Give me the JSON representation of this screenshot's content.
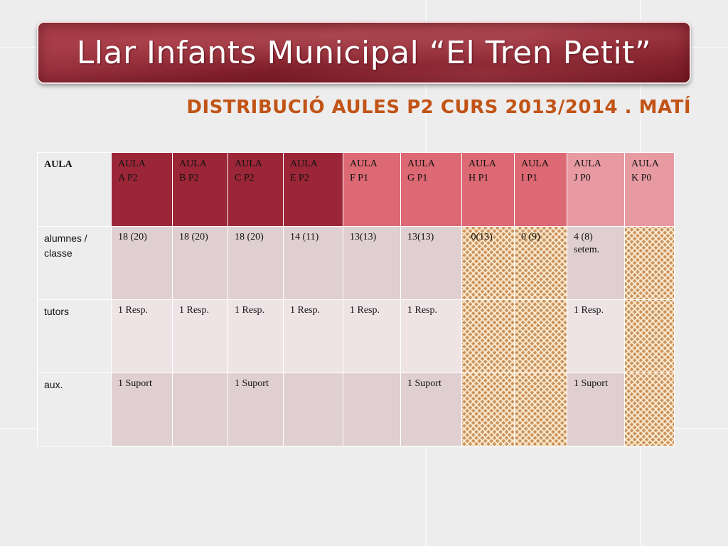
{
  "header": {
    "title": "Llar Infants Municipal “El Tren Petit”",
    "subtitle": "DISTRIBUCIÓ AULES P2 CURS 2013/2014 . MATÍ"
  },
  "table": {
    "corner_label": "AULA",
    "columns": [
      {
        "label": "AULA\nA P2"
      },
      {
        "label": "AULA\nB P2"
      },
      {
        "label": "AULA\nC P2"
      },
      {
        "label": "AULA\nE P2"
      },
      {
        "label": "AULA\nF P1"
      },
      {
        "label": "AULA\nG P1"
      },
      {
        "label": "AULA\nH P1"
      },
      {
        "label": "AULA\nI   P1"
      },
      {
        "label": "AULA\nJ P0"
      },
      {
        "label": "AULA\nK P0"
      }
    ],
    "rows": [
      {
        "label": "alumnes / classe",
        "cells": [
          "18 (20)",
          "18 (20)",
          "18 (20)",
          "14 (11)",
          "13(13)",
          "13(13)",
          " 0(13)",
          "0 (9)",
          "4 (8) setem.",
          ""
        ]
      },
      {
        "label": "tutors",
        "cells": [
          "1 Resp.",
          "1 Resp.",
          "1 Resp.",
          "1 Resp.",
          "1 Resp.",
          "1 Resp.",
          "",
          "",
          "1 Resp.",
          ""
        ]
      },
      {
        "label": "aux.",
        "cells": [
          "1 Suport",
          "",
          "1 Suport",
          "",
          "",
          "1 Suport",
          "",
          "",
          "1 Suport",
          ""
        ]
      }
    ]
  },
  "colors": {
    "header_dark": "#9b2637",
    "header_mid": "#dc6973",
    "header_pale": "#e89aa3",
    "subtitle": "#c15416"
  }
}
